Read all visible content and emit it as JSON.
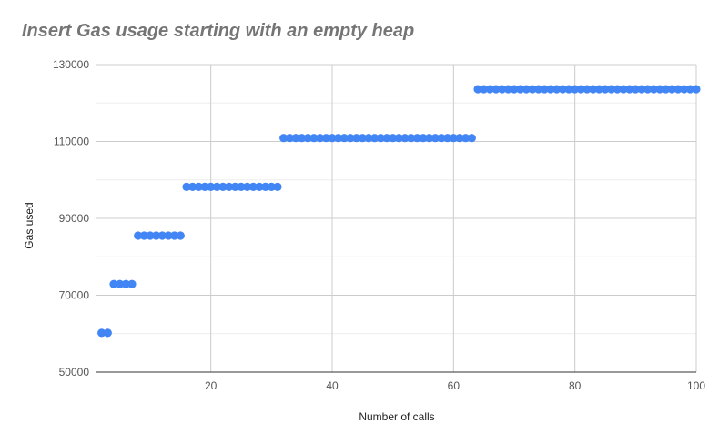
{
  "chart_data": {
    "type": "scatter",
    "title": "Insert Gas usage starting with an empty heap",
    "xlabel": "Number of calls",
    "ylabel": "Gas used",
    "xlim": [
      1,
      100
    ],
    "ylim": [
      50000,
      130000
    ],
    "x_ticks": [
      20,
      40,
      60,
      80,
      100
    ],
    "x_tick_labels": [
      "20",
      "40",
      "60",
      "80",
      "100"
    ],
    "y_ticks": [
      50000,
      70000,
      90000,
      110000,
      130000
    ],
    "y_tick_labels": [
      "50000",
      "70000",
      "90000",
      "110000",
      "130000"
    ],
    "grid": true,
    "color": "#4285f4",
    "series": [
      {
        "segments": [
          {
            "x_from": 2,
            "x_to": 3,
            "y": 60200
          },
          {
            "x_from": 4,
            "x_to": 7,
            "y": 72900
          },
          {
            "x_from": 8,
            "x_to": 15,
            "y": 85500
          },
          {
            "x_from": 16,
            "x_to": 31,
            "y": 98200
          },
          {
            "x_from": 32,
            "x_to": 63,
            "y": 110900
          },
          {
            "x_from": 64,
            "x_to": 100,
            "y": 123600
          }
        ]
      }
    ]
  }
}
